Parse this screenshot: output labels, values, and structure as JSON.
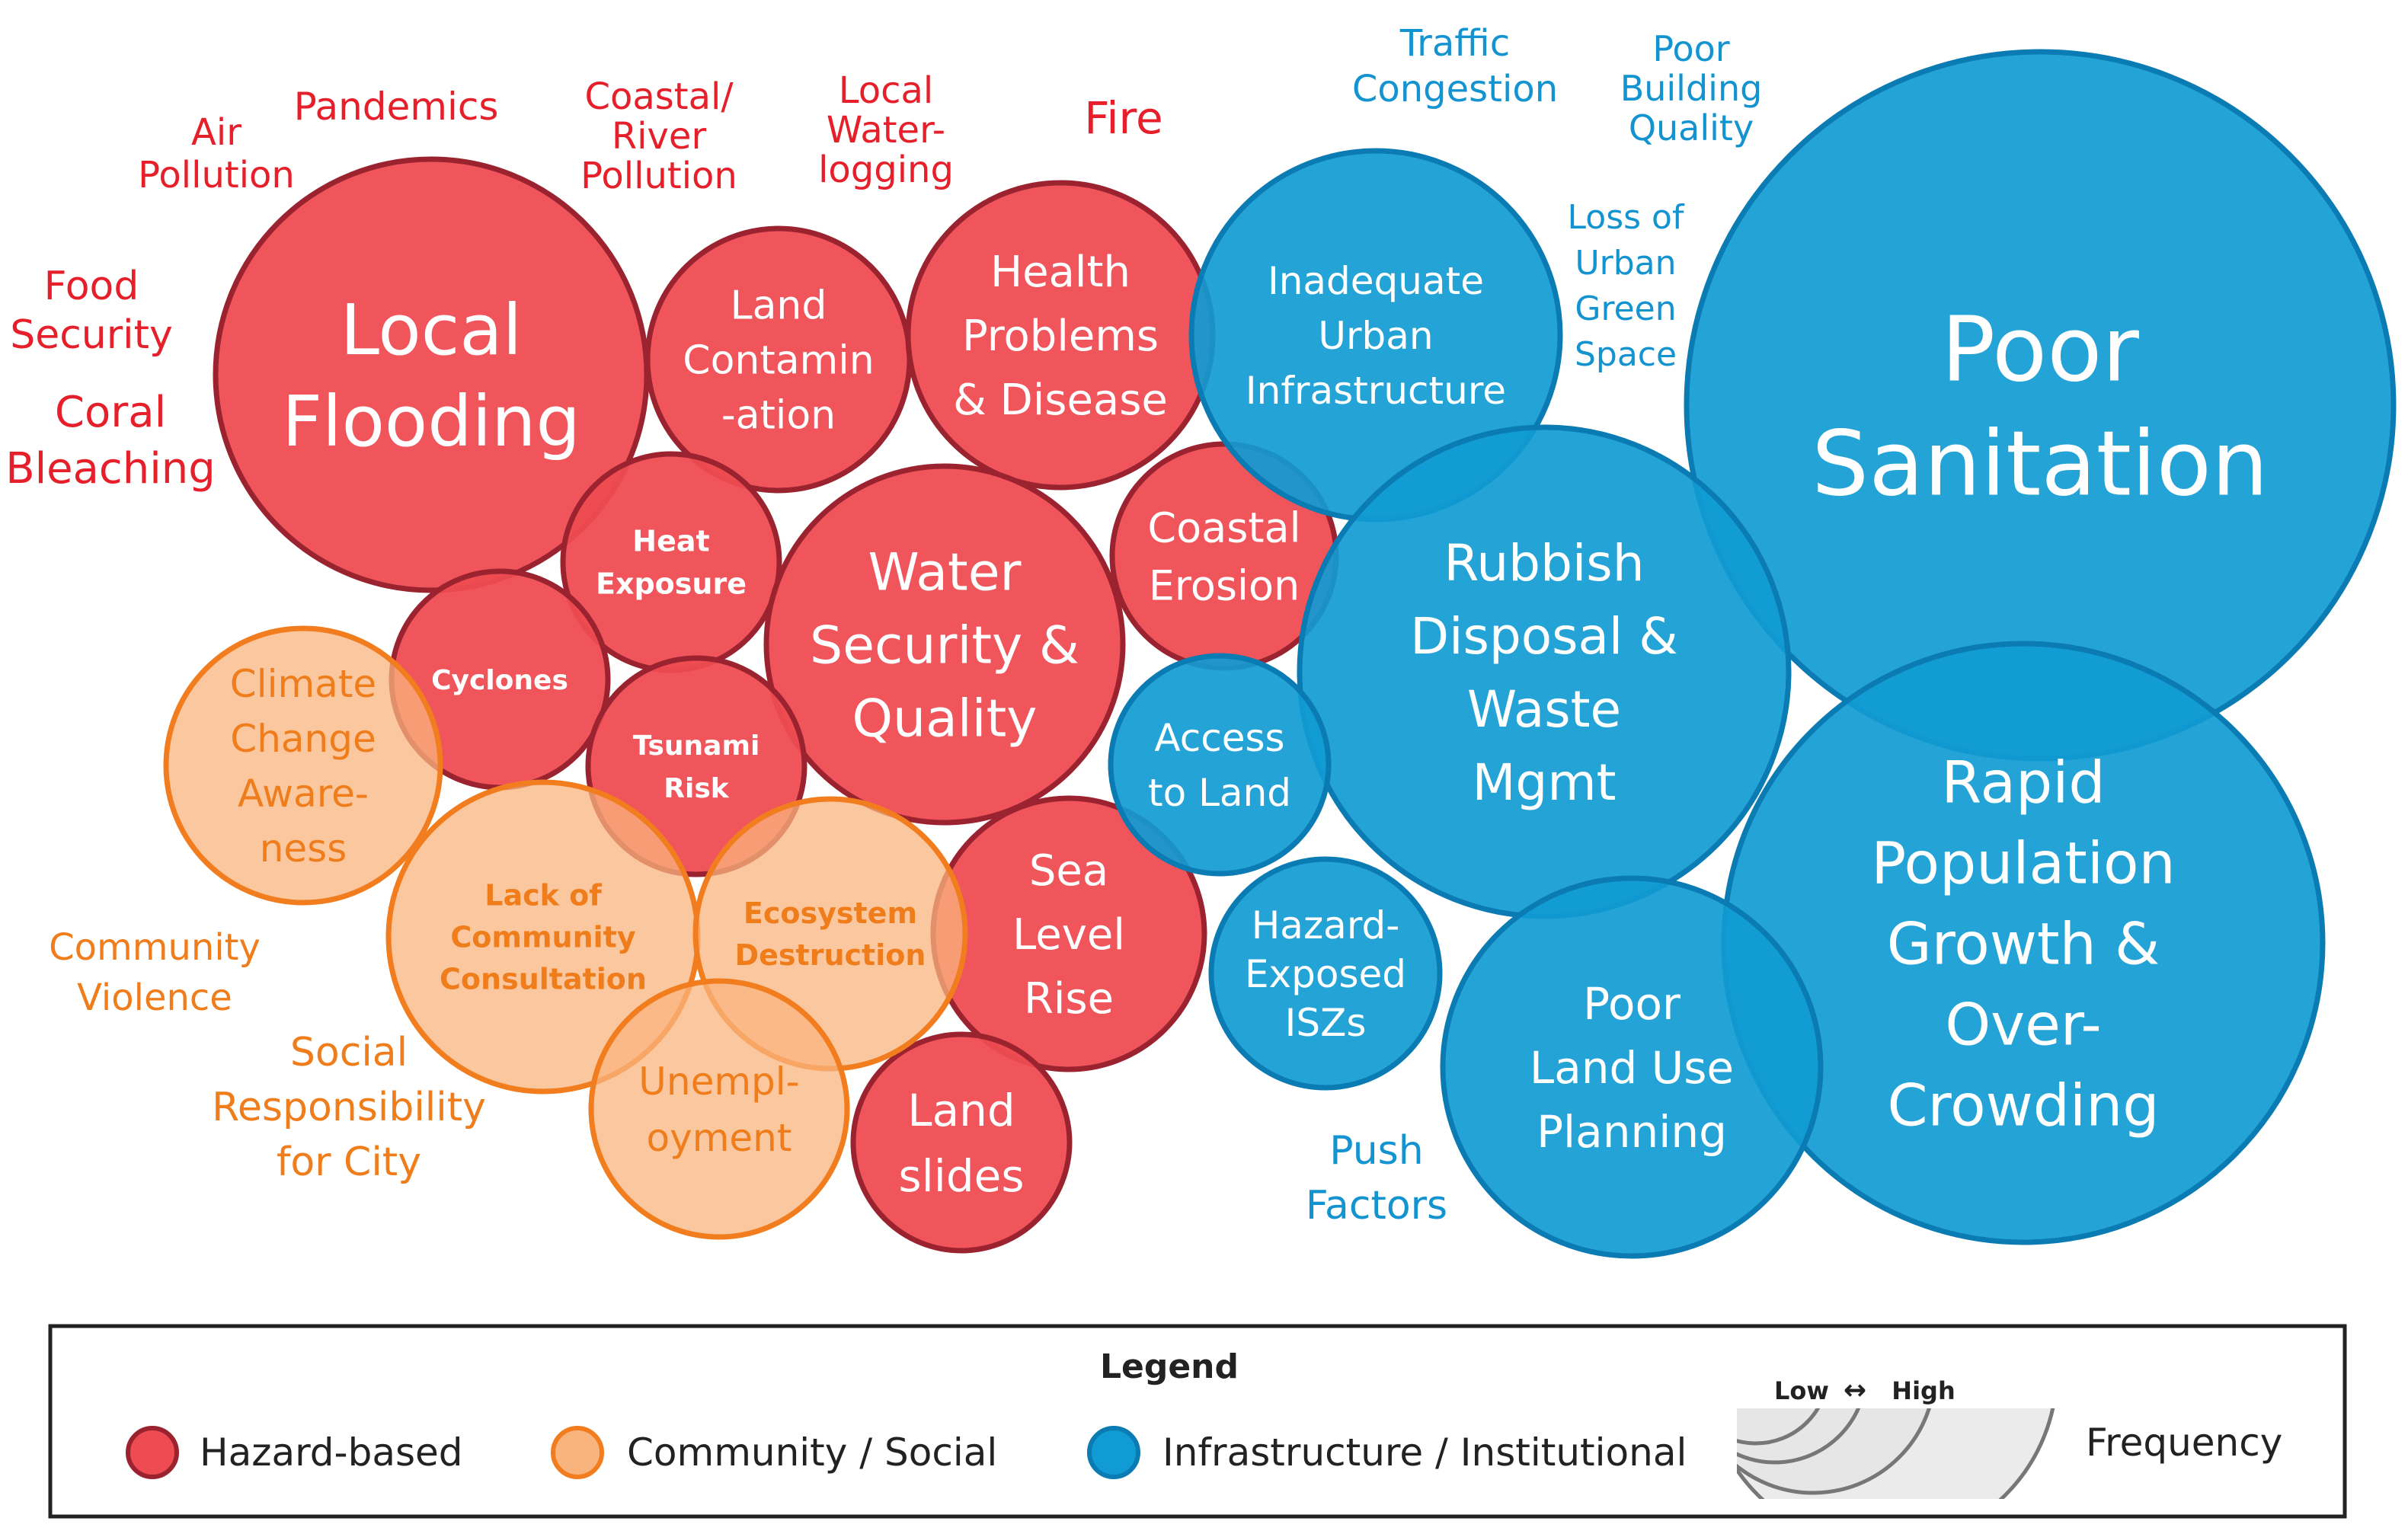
{
  "colors": {
    "hazard_fill": "#ee4c52",
    "hazard_stroke": "#9b2330",
    "hazard_text": "#e5202b",
    "social_fill": "#f9b47e",
    "social_stroke": "#f27d1f",
    "social_text": "#f07d1c",
    "infra_fill": "#119bd4",
    "infra_stroke": "#0b7bb3",
    "infra_text": "#1393d0"
  },
  "bubbles": [
    {
      "id": "local-flooding",
      "category": "hazard",
      "lines": [
        "Local",
        "Flooding"
      ]
    },
    {
      "id": "land-contamination",
      "category": "hazard",
      "lines": [
        "Land",
        "Contamin",
        "-ation"
      ]
    },
    {
      "id": "health-problems",
      "category": "hazard",
      "lines": [
        "Health",
        "Problems",
        "& Disease"
      ]
    },
    {
      "id": "heat-exposure",
      "category": "hazard",
      "lines": [
        "Heat",
        "Exposure"
      ]
    },
    {
      "id": "water-security",
      "category": "hazard",
      "lines": [
        "Water",
        "Security &",
        "Quality"
      ]
    },
    {
      "id": "coastal-erosion",
      "category": "hazard",
      "lines": [
        "Coastal",
        "Erosion"
      ]
    },
    {
      "id": "cyclones",
      "category": "hazard",
      "lines": [
        "Cyclones"
      ]
    },
    {
      "id": "tsunami-risk",
      "category": "hazard",
      "lines": [
        "Tsunami",
        "Risk"
      ]
    },
    {
      "id": "sea-level-rise",
      "category": "hazard",
      "lines": [
        "Sea",
        "Level",
        "Rise"
      ]
    },
    {
      "id": "land-slides",
      "category": "hazard",
      "lines": [
        "Land",
        "slides"
      ]
    },
    {
      "id": "climate-change-awareness",
      "category": "social",
      "lines": [
        "Climate",
        "Change",
        "Aware-",
        "ness"
      ]
    },
    {
      "id": "lack-of-community-consultation",
      "category": "social",
      "lines": [
        "Lack of",
        "Community",
        "Consultation"
      ]
    },
    {
      "id": "ecosystem-destruction",
      "category": "social",
      "lines": [
        "Ecosystem",
        "Destruction"
      ]
    },
    {
      "id": "unemployment",
      "category": "social",
      "lines": [
        "Unempl-",
        "oyment"
      ]
    },
    {
      "id": "inadequate-urban-infrastructure",
      "category": "infra",
      "lines": [
        "Inadequate",
        "Urban",
        "Infrastructure"
      ]
    },
    {
      "id": "poor-sanitation",
      "category": "infra",
      "lines": [
        "Poor",
        "Sanitation"
      ]
    },
    {
      "id": "rubbish-disposal",
      "category": "infra",
      "lines": [
        "Rubbish",
        "Disposal &",
        "Waste",
        "Mgmt"
      ]
    },
    {
      "id": "access-to-land",
      "category": "infra",
      "lines": [
        "Access",
        "to Land"
      ]
    },
    {
      "id": "rapid-population-growth",
      "category": "infra",
      "lines": [
        "Rapid",
        "Population",
        "Growth &",
        "Over-",
        "Crowding"
      ]
    },
    {
      "id": "hazard-exposed-iszs",
      "category": "infra",
      "lines": [
        "Hazard-",
        "Exposed",
        "ISZs"
      ]
    },
    {
      "id": "poor-land-use-planning",
      "category": "infra",
      "lines": [
        "Poor",
        "Land Use",
        "Planning"
      ]
    }
  ],
  "floating_labels": [
    {
      "id": "air-pollution",
      "category": "hazard",
      "lines": [
        "Air",
        "Pollution"
      ]
    },
    {
      "id": "pandemics",
      "category": "hazard",
      "lines": [
        "Pandemics"
      ]
    },
    {
      "id": "coastal-river-pollution",
      "category": "hazard",
      "lines": [
        "Coastal/",
        "River",
        "Pollution"
      ]
    },
    {
      "id": "local-water-logging",
      "category": "hazard",
      "lines": [
        "Local",
        "Water-",
        "logging"
      ]
    },
    {
      "id": "fire",
      "category": "hazard",
      "lines": [
        "Fire"
      ]
    },
    {
      "id": "food-security",
      "category": "hazard",
      "lines": [
        "Food",
        "Security"
      ]
    },
    {
      "id": "coral-bleaching",
      "category": "hazard",
      "lines": [
        "Coral",
        "Bleaching"
      ]
    },
    {
      "id": "traffic-congestion",
      "category": "infra",
      "lines": [
        "Traffic",
        "Congestion"
      ]
    },
    {
      "id": "poor-building-quality",
      "category": "infra",
      "lines": [
        "Poor",
        "Building",
        "Quality"
      ]
    },
    {
      "id": "loss-of-urban-green-space",
      "category": "infra",
      "lines": [
        "Loss of",
        "Urban",
        "Green",
        "Space"
      ]
    },
    {
      "id": "push-factors",
      "category": "infra",
      "lines": [
        "Push",
        "Factors"
      ]
    },
    {
      "id": "community-violence",
      "category": "social",
      "lines": [
        "Community",
        "Violence"
      ]
    },
    {
      "id": "social-responsibility",
      "category": "social",
      "lines": [
        "Social",
        "Responsibility",
        "for City"
      ]
    }
  ],
  "legend": {
    "title": "Legend",
    "items": [
      {
        "category": "hazard",
        "label": "Hazard-based"
      },
      {
        "category": "social",
        "label": "Community / Social"
      },
      {
        "category": "infra",
        "label": "Infrastructure / Institutional"
      }
    ],
    "scale_low": "Low",
    "scale_high": "High",
    "frequency_label": "Frequency"
  }
}
